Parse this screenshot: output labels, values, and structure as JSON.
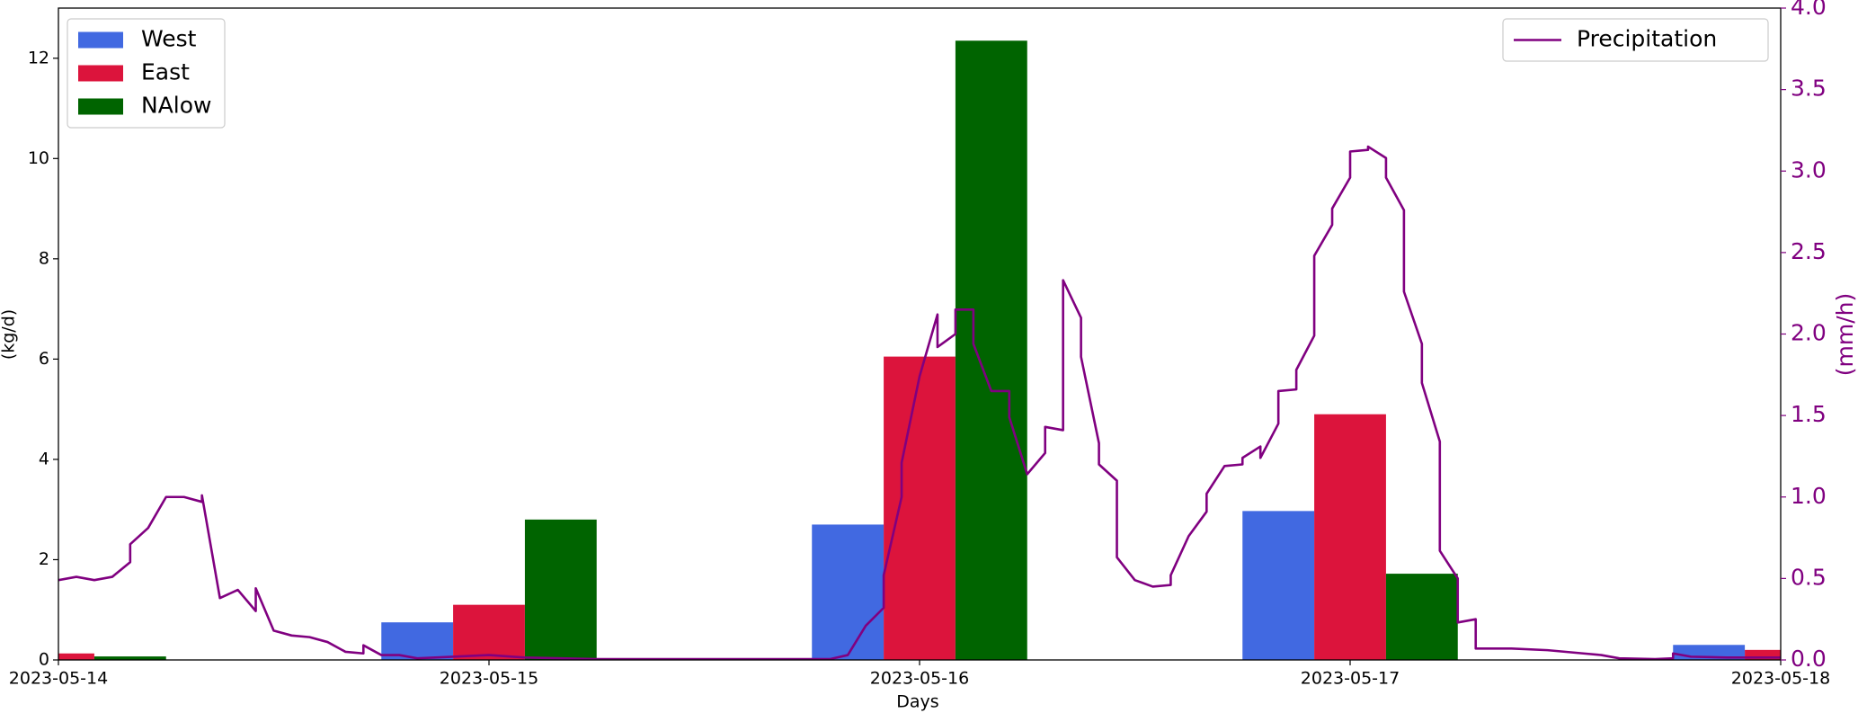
{
  "chart_data": {
    "type": "bar",
    "xlabel": "Days",
    "ylabel": "(kg/d)",
    "y2label": "(mm/h)",
    "x": [
      0,
      24,
      48,
      72,
      96
    ],
    "xlim": [
      0,
      96
    ],
    "xticks": [
      {
        "value": 0,
        "label": "2023-05-14"
      },
      {
        "value": 24,
        "label": "2023-05-15"
      },
      {
        "value": 48,
        "label": "2023-05-16"
      },
      {
        "value": 72,
        "label": "2023-05-17"
      },
      {
        "value": 96,
        "label": "2023-05-18"
      }
    ],
    "ylim": [
      0,
      13
    ],
    "yticks": [
      0,
      2,
      4,
      6,
      8,
      10,
      12
    ],
    "y2lim": [
      0,
      4
    ],
    "y2ticks": [
      {
        "value": 0,
        "label": "0.0"
      },
      {
        "value": 0.5,
        "label": "0.5"
      },
      {
        "value": 1,
        "label": "1.0"
      },
      {
        "value": 1.5,
        "label": "1.5"
      },
      {
        "value": 2,
        "label": "2.0"
      },
      {
        "value": 2.5,
        "label": "2.5"
      },
      {
        "value": 3,
        "label": "3.0"
      },
      {
        "value": 3.5,
        "label": "3.5"
      },
      {
        "value": 4,
        "label": "4.0"
      }
    ],
    "y2color": "#800080",
    "legend": "upper left",
    "y2legend": "upper right",
    "series": [
      {
        "name": "West",
        "color": "#4169e1",
        "values": [
          null,
          0.75,
          2.7,
          2.97,
          0.3
        ]
      },
      {
        "name": "East",
        "color": "#dc143c",
        "values": [
          0.13,
          1.1,
          6.05,
          4.9,
          0.2
        ]
      },
      {
        "name": "NAlow",
        "color": "#006400",
        "values": [
          0.07,
          2.8,
          12.35,
          1.72,
          null
        ]
      },
      {
        "name": "Precipitation",
        "type": "line",
        "axis": "y2",
        "color": "#800080",
        "x": [
          0,
          1,
          2,
          3,
          4,
          4,
          5,
          6,
          7,
          8,
          8,
          9,
          10,
          11,
          11,
          12,
          13,
          14,
          15,
          16,
          17,
          17,
          18,
          19,
          20,
          21,
          24,
          26,
          30,
          43,
          44,
          45,
          46,
          46,
          47,
          47,
          48,
          49,
          49,
          50,
          50,
          51,
          51,
          52,
          53,
          53,
          54,
          55,
          55,
          56,
          56,
          57,
          57,
          58,
          58,
          59,
          59,
          60,
          61,
          62,
          62,
          63,
          64,
          64,
          65,
          66,
          66,
          67,
          67,
          68,
          68,
          69,
          69,
          70,
          70,
          71,
          71,
          72,
          72,
          73,
          73,
          74,
          74,
          75,
          75,
          76,
          76,
          77,
          77,
          78,
          78,
          79,
          79,
          80,
          81,
          83,
          85,
          86,
          87,
          89,
          90,
          90,
          91,
          93,
          96
        ],
        "values": [
          0.49,
          0.51,
          0.49,
          0.51,
          0.6,
          0.71,
          0.81,
          1.0,
          1.0,
          0.97,
          1.01,
          0.38,
          0.43,
          0.3,
          0.44,
          0.18,
          0.15,
          0.14,
          0.11,
          0.05,
          0.04,
          0.09,
          0.03,
          0.03,
          0.01,
          0.015,
          0.03,
          0.015,
          0.005,
          0.005,
          0.03,
          0.21,
          0.32,
          0.52,
          1.0,
          1.21,
          1.74,
          2.12,
          1.92,
          2.0,
          2.15,
          2.15,
          1.94,
          1.65,
          1.65,
          1.49,
          1.14,
          1.27,
          1.43,
          1.41,
          2.33,
          2.1,
          1.86,
          1.33,
          1.2,
          1.1,
          0.63,
          0.49,
          0.45,
          0.46,
          0.52,
          0.76,
          0.91,
          1.02,
          1.19,
          1.2,
          1.24,
          1.31,
          1.24,
          1.45,
          1.65,
          1.66,
          1.78,
          1.99,
          2.48,
          2.67,
          2.77,
          2.96,
          3.12,
          3.13,
          3.15,
          3.08,
          2.96,
          2.76,
          2.26,
          1.94,
          1.7,
          1.34,
          0.67,
          0.5,
          0.23,
          0.25,
          0.07,
          0.07,
          0.07,
          0.06,
          0.04,
          0.03,
          0.01,
          0.005,
          0.01,
          0.04,
          0.02,
          0.015,
          0.015
        ]
      }
    ]
  }
}
